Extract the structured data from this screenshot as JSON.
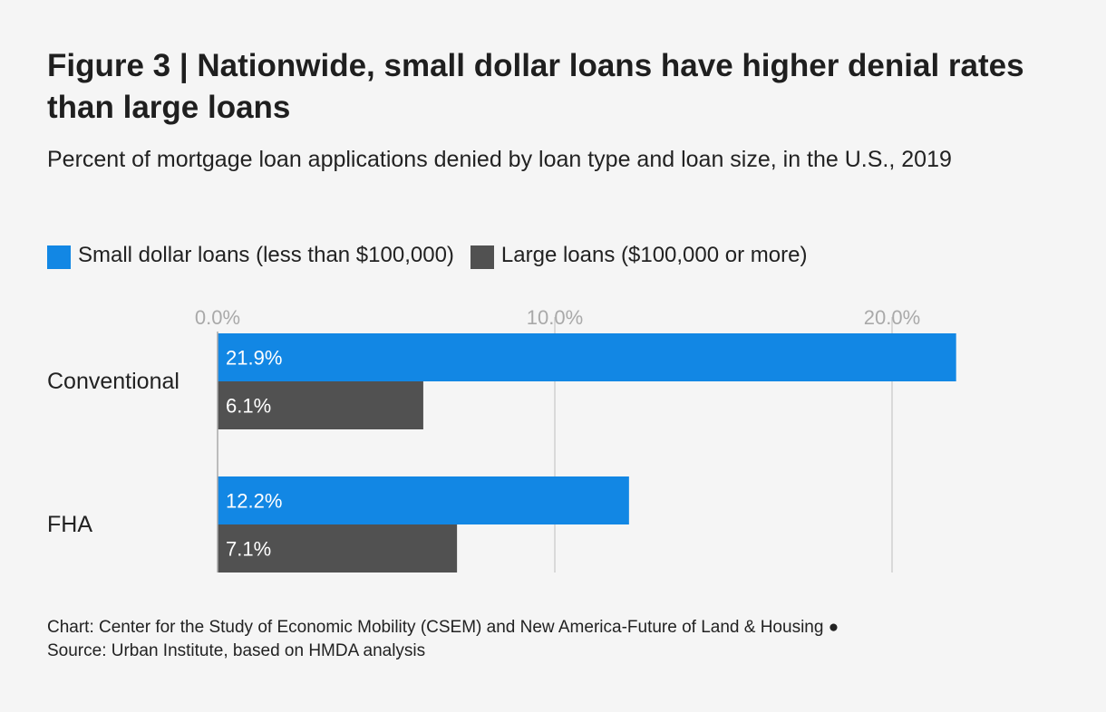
{
  "colors": {
    "small": "#1287e4",
    "large": "#515151",
    "grid": "#d0d0d0",
    "tick": "#a9a9a9"
  },
  "chart_data": {
    "type": "bar",
    "orientation": "horizontal",
    "title": "Figure 3 | Nationwide, small dollar loans have higher denial rates than large loans",
    "subtitle": "Percent of mortgage loan applications denied by loan type and loan size, in the U.S., 2019",
    "categories": [
      "Conventional",
      "FHA"
    ],
    "series": [
      {
        "name": "Small dollar loans (less than $100,000)",
        "values": [
          21.9,
          12.2
        ],
        "labels": [
          "21.9%",
          "12.2%"
        ]
      },
      {
        "name": "Large loans ($100,000 or more)",
        "values": [
          6.1,
          7.1
        ],
        "labels": [
          "6.1%",
          "7.1%"
        ]
      }
    ],
    "xticks": [
      0,
      10,
      20
    ],
    "xtick_labels": [
      "0.0%",
      "10.0%",
      "20.0%"
    ],
    "xlim": [
      0,
      22
    ],
    "grid": true,
    "legend_position": "top-left"
  },
  "footer": {
    "credit": "Chart: Center for the Study of Economic Mobility (CSEM) and New America-Future of Land & Housing ●",
    "source": "Source: Urban Institute, based on HMDA analysis"
  }
}
